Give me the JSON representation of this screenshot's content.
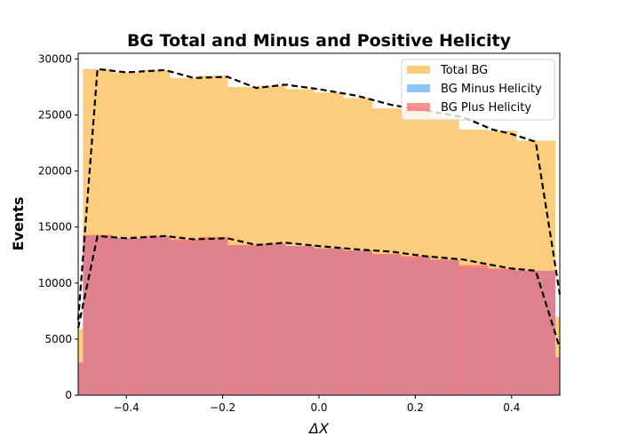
{
  "chart_data": {
    "type": "bar",
    "title": "BG Total and Minus and Positive Helicity",
    "xlabel": "ΔX",
    "ylabel": "Events",
    "xlim": [
      -0.5,
      0.5
    ],
    "ylim": [
      0,
      30500
    ],
    "xticks": [
      -0.4,
      -0.2,
      0.0,
      0.2,
      0.4
    ],
    "xtick_labels": [
      "−0.4",
      "−0.2",
      "0.0",
      "0.2",
      "0.4"
    ],
    "yticks": [
      0,
      5000,
      10000,
      15000,
      20000,
      25000,
      30000
    ],
    "ytick_labels": [
      "0",
      "5000",
      "10000",
      "15000",
      "20000",
      "25000",
      "30000"
    ],
    "bin_edges": [
      -0.51,
      -0.49,
      -0.43,
      -0.37,
      -0.31,
      -0.25,
      -0.19,
      -0.13,
      -0.07,
      -0.01,
      0.05,
      0.11,
      0.17,
      0.23,
      0.29,
      0.35,
      0.41,
      0.45,
      0.49,
      0.51
    ],
    "series": [
      {
        "name": "Total BG",
        "color": "#fdcd7e",
        "values": [
          5900,
          29100,
          28800,
          29000,
          28300,
          28500,
          27500,
          27600,
          27300,
          27000,
          26500,
          25600,
          25400,
          24800,
          23700,
          23600,
          22700,
          22700,
          7000
        ]
      },
      {
        "name": "BG Minus Helicity",
        "color": "#8ec5f5",
        "values": [
          2900,
          14200,
          14000,
          14100,
          13700,
          13800,
          13300,
          13500,
          13300,
          13100,
          12900,
          12500,
          12300,
          12000,
          11400,
          11200,
          11100,
          11100,
          3400
        ]
      },
      {
        "name": "BG Plus Helicity",
        "color": "#f96b6b",
        "values": [
          2900,
          14300,
          14000,
          14200,
          13900,
          14100,
          13400,
          13500,
          13300,
          13100,
          12900,
          12600,
          12400,
          12100,
          11600,
          11300,
          11100,
          11100,
          3400
        ]
      }
    ],
    "fit_lines": [
      {
        "style": "dashed",
        "color": "#000000",
        "x": [
          -0.5,
          -0.46,
          -0.4,
          -0.32,
          -0.26,
          -0.19,
          -0.13,
          -0.07,
          0.0,
          0.08,
          0.15,
          0.22,
          0.3,
          0.36,
          0.4,
          0.45,
          0.5
        ],
        "y": [
          6700,
          29100,
          28800,
          29000,
          28300,
          28400,
          27400,
          27700,
          27300,
          26700,
          25900,
          25400,
          24800,
          23700,
          23300,
          22600,
          9000
        ]
      },
      {
        "style": "dashed",
        "color": "#000000",
        "x": [
          -0.5,
          -0.46,
          -0.4,
          -0.32,
          -0.26,
          -0.19,
          -0.13,
          -0.07,
          0.0,
          0.08,
          0.15,
          0.22,
          0.3,
          0.36,
          0.4,
          0.45,
          0.5
        ],
        "y": [
          6000,
          14200,
          14000,
          14200,
          13900,
          14000,
          13400,
          13600,
          13300,
          13000,
          12800,
          12400,
          12100,
          11600,
          11300,
          11100,
          4200
        ]
      }
    ],
    "legend_position": "top-right",
    "grid": false
  }
}
